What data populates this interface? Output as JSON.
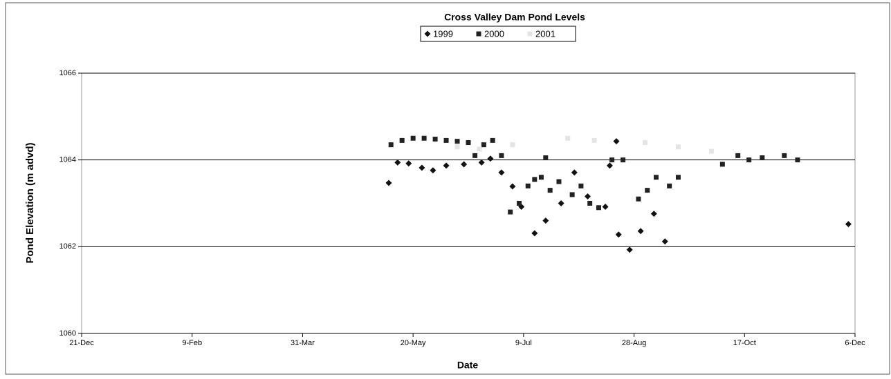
{
  "chart_data": {
    "type": "scatter",
    "title": "Cross Valley Dam Pond Levels",
    "x_label": "Date",
    "y_label": "Pond Elevation (m advd)",
    "xlim": [
      0,
      350
    ],
    "xticks": [
      {
        "value": 0,
        "label": "21-Dec"
      },
      {
        "value": 50,
        "label": "9-Feb"
      },
      {
        "value": 100,
        "label": "31-Mar"
      },
      {
        "value": 150,
        "label": "20-May"
      },
      {
        "value": 200,
        "label": "9-Jul"
      },
      {
        "value": 250,
        "label": "28-Aug"
      },
      {
        "value": 300,
        "label": "17-Oct"
      },
      {
        "value": 350,
        "label": "6-Dec"
      }
    ],
    "ylim": [
      1060,
      1066
    ],
    "yticks": [
      1060,
      1062,
      1064,
      1066
    ],
    "grid": true,
    "legend": "top",
    "series": [
      {
        "name": "1999",
        "color": "#111111",
        "marker": "diamond",
        "x": [
          139,
          143,
          148,
          154,
          159,
          165,
          173,
          181,
          185,
          190,
          195,
          199,
          205,
          210,
          217,
          223,
          229,
          237,
          239,
          242,
          243,
          248,
          253,
          259,
          264,
          347
        ],
        "values": [
          1063.47,
          1063.94,
          1063.92,
          1063.82,
          1063.76,
          1063.87,
          1063.9,
          1063.94,
          1064.03,
          1063.71,
          1063.39,
          1062.92,
          1062.31,
          1062.6,
          1063.0,
          1063.71,
          1063.16,
          1062.92,
          1063.87,
          1064.43,
          1062.28,
          1061.93,
          1062.36,
          1062.76,
          1062.12,
          1062.52
        ]
      },
      {
        "name": "2000",
        "color": "#222222",
        "marker": "square",
        "x": [
          140,
          145,
          150,
          155,
          160,
          165,
          170,
          175,
          178,
          182,
          186,
          190,
          194,
          198,
          202,
          205,
          208,
          210,
          212,
          216,
          222,
          226,
          230,
          234,
          240,
          245,
          252,
          256,
          260,
          266,
          270,
          290,
          297,
          302,
          308,
          318,
          324
        ],
        "values": [
          1064.35,
          1064.45,
          1064.5,
          1064.5,
          1064.48,
          1064.45,
          1064.43,
          1064.4,
          1064.1,
          1064.35,
          1064.45,
          1064.1,
          1062.8,
          1063.0,
          1063.4,
          1063.55,
          1063.6,
          1064.05,
          1063.3,
          1063.5,
          1063.2,
          1063.4,
          1063.0,
          1062.9,
          1064.0,
          1064.0,
          1063.1,
          1063.3,
          1063.6,
          1063.4,
          1063.6,
          1063.9,
          1064.1,
          1064.0,
          1064.05,
          1064.1,
          1064.0
        ]
      },
      {
        "name": "2001",
        "color": "#e4e4e4",
        "marker": "square",
        "x": [
          170,
          180,
          195,
          220,
          232,
          255,
          270,
          285
        ],
        "values": [
          1064.3,
          1064.25,
          1064.35,
          1064.5,
          1064.45,
          1064.4,
          1064.3,
          1064.2
        ]
      }
    ]
  }
}
